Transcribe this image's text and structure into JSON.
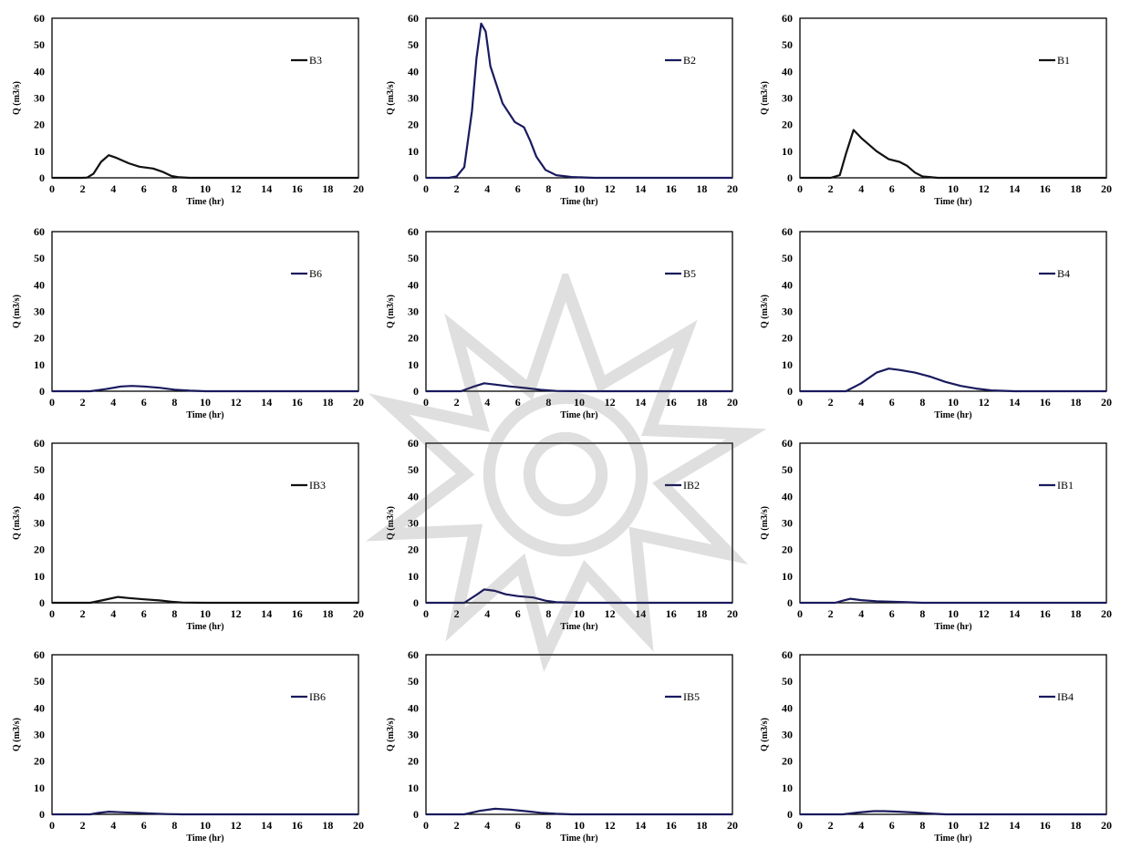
{
  "chart_data": [
    {
      "type": "line",
      "legend": "B3",
      "xlabel": "Time (hr)",
      "ylabel": "Q (m3/s)",
      "xlim": [
        0,
        20
      ],
      "ylim": [
        0,
        60
      ],
      "xticks": [
        0,
        2,
        4,
        6,
        8,
        10,
        12,
        14,
        16,
        18,
        20
      ],
      "yticks": [
        0,
        10,
        20,
        30,
        40,
        50,
        60
      ],
      "x": [
        0,
        2,
        2.3,
        2.7,
        3.2,
        3.7,
        4.2,
        5,
        5.7,
        6.6,
        7.2,
        7.8,
        8.3,
        9,
        10,
        20
      ],
      "y": [
        0,
        0,
        0.1,
        1.5,
        6,
        8.5,
        7.5,
        5.5,
        4.2,
        3.5,
        2.3,
        0.7,
        0.2,
        0,
        0,
        0
      ],
      "color": "#111111"
    },
    {
      "type": "line",
      "legend": "B2",
      "xlabel": "Time (hr)",
      "ylabel": "Q (m3/s)",
      "xlim": [
        0,
        20
      ],
      "ylim": [
        0,
        60
      ],
      "xticks": [
        0,
        2,
        4,
        6,
        8,
        10,
        12,
        14,
        16,
        18,
        20
      ],
      "yticks": [
        0,
        10,
        20,
        30,
        40,
        50,
        60
      ],
      "x": [
        0,
        1.5,
        2,
        2.5,
        3,
        3.3,
        3.6,
        3.9,
        4.2,
        5,
        5.8,
        6.4,
        6.8,
        7.2,
        7.8,
        8.5,
        9.5,
        11,
        20
      ],
      "y": [
        0,
        0,
        0.5,
        4,
        25,
        45,
        58,
        55,
        42,
        28,
        21,
        19,
        14,
        8,
        3,
        1,
        0.3,
        0,
        0
      ],
      "color": "#1a1a5e"
    },
    {
      "type": "line",
      "legend": "B1",
      "xlabel": "Time (hr)",
      "ylabel": "Q (m3/s)",
      "xlim": [
        0,
        20
      ],
      "ylim": [
        0,
        60
      ],
      "xticks": [
        0,
        2,
        4,
        6,
        8,
        10,
        12,
        14,
        16,
        18,
        20
      ],
      "yticks": [
        0,
        10,
        20,
        30,
        40,
        50,
        60
      ],
      "x": [
        0,
        2,
        2.6,
        3,
        3.5,
        4,
        5,
        5.8,
        6.5,
        7,
        7.5,
        8,
        9,
        20
      ],
      "y": [
        0,
        0,
        1,
        9,
        18,
        15,
        10,
        7,
        6,
        4.5,
        2,
        0.5,
        0,
        0
      ],
      "color": "#111111"
    },
    {
      "type": "line",
      "legend": "B6",
      "xlabel": "Time (hr)",
      "ylabel": "Q (m3/s)",
      "xlim": [
        0,
        20
      ],
      "ylim": [
        0,
        60
      ],
      "xticks": [
        0,
        2,
        4,
        6,
        8,
        10,
        12,
        14,
        16,
        18,
        20
      ],
      "yticks": [
        0,
        10,
        20,
        30,
        40,
        50,
        60
      ],
      "x": [
        0,
        2.5,
        3.5,
        4.5,
        5.2,
        6,
        7,
        8,
        9,
        10,
        20
      ],
      "y": [
        0,
        0,
        0.8,
        1.8,
        2,
        1.8,
        1.3,
        0.6,
        0.2,
        0,
        0
      ],
      "color": "#1a1a5e"
    },
    {
      "type": "line",
      "legend": "B5",
      "xlabel": "Time (hr)",
      "ylabel": "Q (m3/s)",
      "xlim": [
        0,
        20
      ],
      "ylim": [
        0,
        60
      ],
      "xticks": [
        0,
        2,
        4,
        6,
        8,
        10,
        12,
        14,
        16,
        18,
        20
      ],
      "yticks": [
        0,
        10,
        20,
        30,
        40,
        50,
        60
      ],
      "x": [
        0,
        2.3,
        3,
        3.8,
        4.5,
        5.5,
        6.5,
        7.5,
        8.5,
        10,
        20
      ],
      "y": [
        0,
        0,
        1.5,
        3,
        2.5,
        1.8,
        1.2,
        0.5,
        0.1,
        0,
        0
      ],
      "color": "#1a1a5e"
    },
    {
      "type": "line",
      "legend": "B4",
      "xlabel": "Time (hr)",
      "ylabel": "Q (m3/s)",
      "xlim": [
        0,
        20
      ],
      "ylim": [
        0,
        60
      ],
      "xticks": [
        0,
        2,
        4,
        6,
        8,
        10,
        12,
        14,
        16,
        18,
        20
      ],
      "yticks": [
        0,
        10,
        20,
        30,
        40,
        50,
        60
      ],
      "x": [
        0,
        3,
        4,
        5,
        5.8,
        6.5,
        7.5,
        8.5,
        9.5,
        10.5,
        11.5,
        12.5,
        14,
        20
      ],
      "y": [
        0,
        0,
        3,
        7,
        8.5,
        8,
        7,
        5.5,
        3.5,
        2,
        1,
        0.3,
        0,
        0
      ],
      "color": "#1a1a5e"
    },
    {
      "type": "line",
      "legend": "IB3",
      "xlabel": "Time (hr)",
      "ylabel": "Q (m3/s)",
      "xlim": [
        0,
        20
      ],
      "ylim": [
        0,
        60
      ],
      "xticks": [
        0,
        2,
        4,
        6,
        8,
        10,
        12,
        14,
        16,
        18,
        20
      ],
      "yticks": [
        0,
        10,
        20,
        30,
        40,
        50,
        60
      ],
      "x": [
        0,
        2.5,
        3.5,
        4.3,
        5,
        6,
        7,
        7.8,
        8.5,
        10,
        20
      ],
      "y": [
        0,
        0,
        1.2,
        2.2,
        1.8,
        1.3,
        0.9,
        0.4,
        0.1,
        0,
        0
      ],
      "color": "#111111"
    },
    {
      "type": "line",
      "legend": "IB2",
      "xlabel": "Time (hr)",
      "ylabel": "Q (m3/s)",
      "xlim": [
        0,
        20
      ],
      "ylim": [
        0,
        60
      ],
      "xticks": [
        0,
        2,
        4,
        6,
        8,
        10,
        12,
        14,
        16,
        18,
        20
      ],
      "yticks": [
        0,
        10,
        20,
        30,
        40,
        50,
        60
      ],
      "x": [
        0,
        2.5,
        3.3,
        3.8,
        4.5,
        5.2,
        6,
        7,
        7.8,
        8.5,
        10,
        20
      ],
      "y": [
        0,
        0,
        3,
        5,
        4.5,
        3.2,
        2.5,
        2,
        0.8,
        0.2,
        0,
        0
      ],
      "color": "#1a1a5e"
    },
    {
      "type": "line",
      "legend": "IB1",
      "xlabel": "Time (hr)",
      "ylabel": "Q (m3/s)",
      "xlim": [
        0,
        20
      ],
      "ylim": [
        0,
        60
      ],
      "xticks": [
        0,
        2,
        4,
        6,
        8,
        10,
        12,
        14,
        16,
        18,
        20
      ],
      "yticks": [
        0,
        10,
        20,
        30,
        40,
        50,
        60
      ],
      "x": [
        0,
        2.3,
        2.8,
        3.3,
        4,
        5,
        6,
        7,
        8,
        20
      ],
      "y": [
        0,
        0,
        0.8,
        1.5,
        1,
        0.6,
        0.4,
        0.2,
        0,
        0
      ],
      "color": "#1a1a5e"
    },
    {
      "type": "line",
      "legend": "IB6",
      "xlabel": "Time (hr)",
      "ylabel": "Q (m3/s)",
      "xlim": [
        0,
        20
      ],
      "ylim": [
        0,
        60
      ],
      "xticks": [
        0,
        2,
        4,
        6,
        8,
        10,
        12,
        14,
        16,
        18,
        20
      ],
      "yticks": [
        0,
        10,
        20,
        30,
        40,
        50,
        60
      ],
      "x": [
        0,
        2.5,
        3,
        3.7,
        4.5,
        5.5,
        6.5,
        7.5,
        8.5,
        20
      ],
      "y": [
        0,
        0,
        0.5,
        1,
        0.8,
        0.6,
        0.3,
        0.1,
        0,
        0
      ],
      "color": "#1a1a5e"
    },
    {
      "type": "line",
      "legend": "IB5",
      "xlabel": "Time (hr)",
      "ylabel": "Q (m3/s)",
      "xlim": [
        0,
        20
      ],
      "ylim": [
        0,
        60
      ],
      "xticks": [
        0,
        2,
        4,
        6,
        8,
        10,
        12,
        14,
        16,
        18,
        20
      ],
      "yticks": [
        0,
        10,
        20,
        30,
        40,
        50,
        60
      ],
      "x": [
        0,
        2.5,
        3.5,
        4.5,
        5.5,
        6.5,
        7.5,
        8.5,
        9.5,
        20
      ],
      "y": [
        0,
        0,
        1.3,
        2.1,
        1.8,
        1.2,
        0.6,
        0.2,
        0,
        0
      ],
      "color": "#1a1a5e"
    },
    {
      "type": "line",
      "legend": "IB4",
      "xlabel": "Time (hr)",
      "ylabel": "Q (m3/s)",
      "xlim": [
        0,
        20
      ],
      "ylim": [
        0,
        60
      ],
      "xticks": [
        0,
        2,
        4,
        6,
        8,
        10,
        12,
        14,
        16,
        18,
        20
      ],
      "yticks": [
        0,
        10,
        20,
        30,
        40,
        50,
        60
      ],
      "x": [
        0,
        2.8,
        3.8,
        4.8,
        5.5,
        6.5,
        7.5,
        8.5,
        9.5,
        20
      ],
      "y": [
        0,
        0,
        0.7,
        1.2,
        1.2,
        1,
        0.7,
        0.3,
        0,
        0
      ],
      "color": "#1a1a5e"
    }
  ]
}
